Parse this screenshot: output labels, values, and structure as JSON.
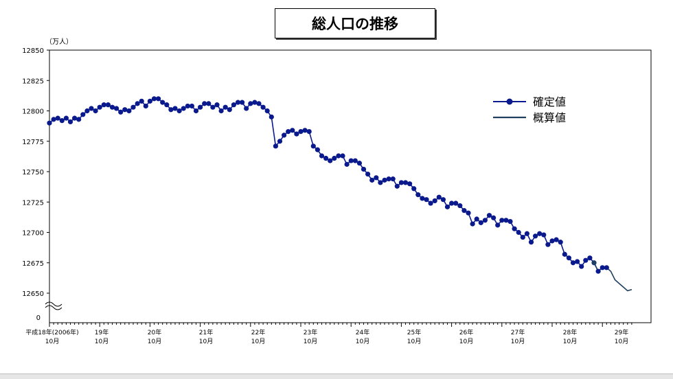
{
  "title": "総人口の推移",
  "unit": "（万人）",
  "chart_data": {
    "type": "line",
    "title": "総人口の推移",
    "ylabel": "（万人）",
    "xlabel": "",
    "ylim": [
      12650,
      12850
    ],
    "yticks": [
      "12850",
      "12825",
      "12800",
      "12775",
      "12750",
      "12725",
      "12700",
      "12675",
      "12650"
    ],
    "y_zero_label": "0",
    "y_break": true,
    "legend_position": "top-right",
    "x_ticks": [
      {
        "line1": "平成18年(2006年)",
        "line2": "10月"
      },
      {
        "line1": "19年",
        "line2": "10月"
      },
      {
        "line1": "20年",
        "line2": "10月"
      },
      {
        "line1": "21年",
        "line2": "10月"
      },
      {
        "line1": "22年",
        "line2": "10月"
      },
      {
        "line1": "23年",
        "line2": "10月"
      },
      {
        "line1": "24年",
        "line2": "10月"
      },
      {
        "line1": "25年",
        "line2": "10月"
      },
      {
        "line1": "26年",
        "line2": "10月"
      },
      {
        "line1": "27年",
        "line2": "10月"
      },
      {
        "line1": "28年",
        "line2": "10月"
      },
      {
        "line1": "29年",
        "line2": "10月"
      }
    ],
    "series": [
      {
        "name": "確定値",
        "color": "#0a1a8c",
        "marker": "circle",
        "values": [
          12790,
          12793,
          12794,
          12792,
          12794,
          12791,
          12794,
          12793,
          12797,
          12800,
          12802,
          12800,
          12803,
          12805,
          12805,
          12803,
          12802,
          12799,
          12801,
          12800,
          12803,
          12806,
          12808,
          12804,
          12808,
          12810,
          12810,
          12807,
          12805,
          12801,
          12802,
          12800,
          12802,
          12804,
          12804,
          12800,
          12803,
          12806,
          12806,
          12803,
          12805,
          12800,
          12803,
          12801,
          12805,
          12807,
          12807,
          12802,
          12806,
          12807,
          12806,
          12803,
          12800,
          12795,
          12771,
          12775,
          12780,
          12783,
          12784,
          12781,
          12783,
          12784,
          12783,
          12771,
          12768,
          12763,
          12761,
          12759,
          12761,
          12763,
          12763,
          12756,
          12759,
          12759,
          12757,
          12752,
          12748,
          12743,
          12745,
          12741,
          12743,
          12744,
          12744,
          12738,
          12741,
          12741,
          12740,
          12736,
          12731,
          12728,
          12727,
          12724,
          12726,
          12729,
          12727,
          12721,
          12724,
          12724,
          12722,
          12718,
          12716,
          12707,
          12711,
          12708,
          12710,
          12714,
          12712,
          12706,
          12710,
          12710,
          12709,
          12703,
          12700,
          12696,
          12699,
          12692,
          12697,
          12699,
          12698,
          12690,
          12693,
          12694,
          12692,
          12682,
          12679,
          12675,
          12676,
          12672,
          12677,
          12679,
          12675,
          12668,
          12671,
          12671
        ]
      },
      {
        "name": "概算値",
        "color": "#1f3f5f",
        "marker": "none",
        "start_index": 130,
        "values": [
          12675,
          12668,
          12671,
          12671,
          12668,
          12661,
          12658,
          12655,
          12652,
          12653
        ]
      }
    ]
  }
}
